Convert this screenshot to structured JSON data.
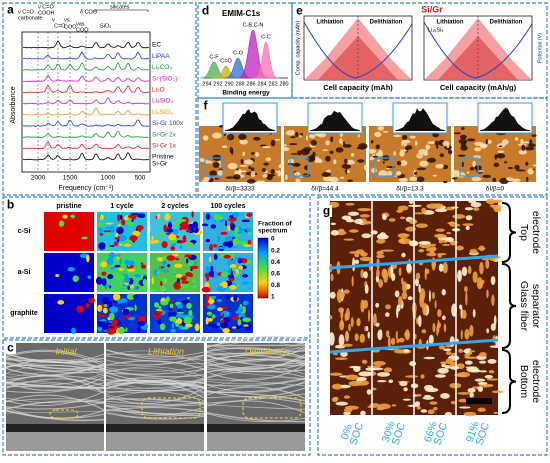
{
  "panels": {
    "a": {
      "label": "a",
      "ylabel": "Absorbance",
      "xlabel": "Frequency (cm⁻¹)",
      "xticks": [
        "2000",
        "1500",
        "1000",
        "500"
      ],
      "annotations": [
        "ν C=O",
        "carbonate",
        "ν C=O",
        "COOH",
        "ν",
        "C=O",
        "νs",
        "COO",
        "δ COO",
        "νas",
        "COO",
        "silicates",
        "SiO₂"
      ],
      "legend": [
        "EC",
        "LiPAA",
        "Li₂CO₃",
        "Si (SiO₂)",
        "Li₂O",
        "Li₄SiO₄",
        "Li₂SiO₃",
        "Si-Gr 100x",
        "Si-Gr 2x",
        "Si-Gr 1x",
        "Pristine",
        "Si-Gr"
      ]
    },
    "d": {
      "label": "d",
      "title": "EMIM-C1s",
      "xlabel": "Binding energy",
      "xticks": [
        "294",
        "292",
        "290",
        "288",
        "286",
        "284",
        "282",
        "280"
      ],
      "peaks": [
        "C-F",
        "C=O",
        "C-O",
        "C-B,C-N",
        "C-C"
      ]
    },
    "e": {
      "label": "e",
      "title": "Si/Gr",
      "left": {
        "tags": [
          "Lithiation",
          "Delithiation"
        ],
        "xlabel": "Cell capacity (mAh)",
        "ylabel": "Comp. capacity (mAh)"
      },
      "right": {
        "tags": [
          "Lithiation",
          "Delithiation",
          "Li₁₅Si₄"
        ],
        "xlabel": "Cell capacity (mAh/g)",
        "ylabel": "Potential (V)"
      }
    },
    "f": {
      "label": "f",
      "captions": [
        "δI/β=3333",
        "δI/β=44.4",
        "δI/β=13.3",
        "δI/β=0"
      ]
    },
    "b": {
      "label": "b",
      "columns": [
        "pristine",
        "1 cycle",
        "2 cycles",
        "100 cycles"
      ],
      "rows": [
        "c-Si",
        "a-Si",
        "graphite"
      ],
      "colorbar_title": [
        "Fraction of",
        "spectrum"
      ],
      "colorbar_ticks": [
        "0",
        "0.2",
        "0.4",
        "0.6",
        "0.8",
        "1"
      ]
    },
    "c": {
      "label": "c",
      "captions": [
        "Initial",
        "Lithiation",
        "Delithiation"
      ]
    },
    "g": {
      "label": "g",
      "regions": [
        [
          "Top",
          "electrode"
        ],
        [
          "Glass fiber",
          "separator"
        ],
        [
          "Bottom",
          "electrode"
        ]
      ],
      "columns": [
        [
          "0%",
          "SOC"
        ],
        [
          "30%",
          "SOC"
        ],
        [
          "66%",
          "SOC"
        ],
        [
          "91%",
          "SOC"
        ]
      ]
    }
  }
}
